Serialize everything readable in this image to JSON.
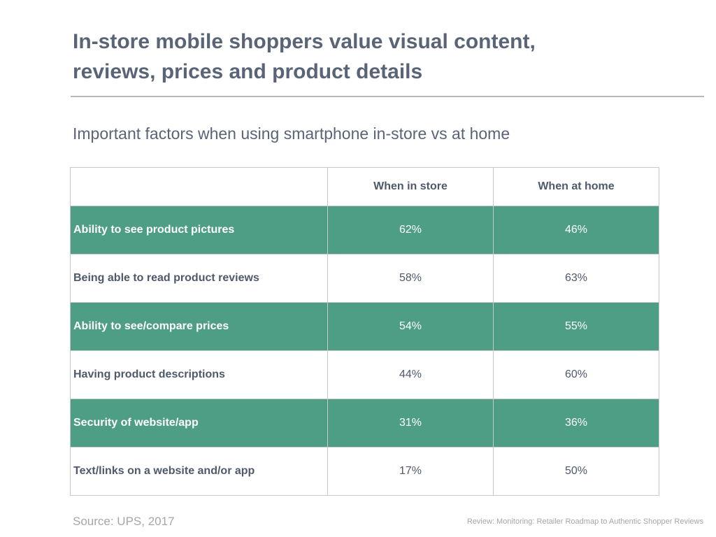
{
  "title": {
    "line1": "In-store mobile shoppers value visual content,",
    "line2": "reviews, prices and product details"
  },
  "subtitle": "Important factors when using smartphone in-store vs at home",
  "table": {
    "headers": [
      "",
      "When in store",
      "When at home"
    ],
    "rows": [
      {
        "factor": "Ability to see product pictures",
        "in_store": "62%",
        "at_home": "46%"
      },
      {
        "factor": "Being able to read product reviews",
        "in_store": "58%",
        "at_home": "63%"
      },
      {
        "factor": "Ability to see/compare prices",
        "in_store": "54%",
        "at_home": "55%"
      },
      {
        "factor": "Having product descriptions",
        "in_store": "44%",
        "at_home": "60%"
      },
      {
        "factor": "Security of website/app",
        "in_store": "31%",
        "at_home": "36%"
      },
      {
        "factor": "Text/links on a website and/or app",
        "in_store": "17%",
        "at_home": "50%"
      }
    ]
  },
  "footer": {
    "source": "Source: UPS, 2017",
    "citation": "Review: Monitoring: Retailer Roadmap to Authentic Shopper Reviews"
  },
  "colors": {
    "row_highlight": "#4e9e86",
    "text": "#4e5a6c",
    "muted": "#a6a6a6"
  }
}
